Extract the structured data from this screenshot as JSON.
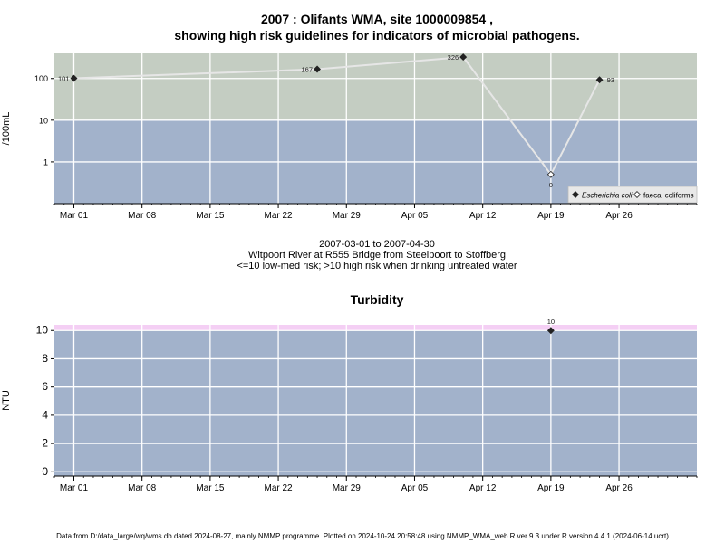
{
  "chart_data": [
    {
      "type": "scatter",
      "title": "2007 : Olifants WMA, site 1000009854 ,",
      "subtitle": "showing high risk guidelines for indicators of microbial pathogens.",
      "ylabel": "/100mL",
      "xlabel_lines": [
        "2007-03-01 to 2007-04-30",
        "Witpoort River at R555 Bridge from Steelpoort to Stoffberg",
        "<=10 low-med risk; >10 high risk when drinking untreated water"
      ],
      "yscale": "log",
      "ylim": [
        0.1,
        400
      ],
      "yticks": [
        1,
        10,
        100
      ],
      "ytick_labels": [
        "1",
        "10",
        "100"
      ],
      "xlim": [
        "2007-02-27",
        "2007-05-04"
      ],
      "xticks": [
        "2007-03-01",
        "2007-03-08",
        "2007-03-15",
        "2007-03-22",
        "2007-03-29",
        "2007-04-05",
        "2007-04-12",
        "2007-04-19",
        "2007-04-26"
      ],
      "xtick_labels": [
        "Mar 01",
        "Mar 08",
        "Mar 15",
        "Mar 22",
        "Mar 29",
        "Apr 05",
        "Apr 12",
        "Apr 19",
        "Apr 26"
      ],
      "bands": [
        {
          "from": 0.1,
          "to": 10,
          "color": "#a2b2cb"
        },
        {
          "from": 10,
          "to": 400,
          "color": "#c4cdc2"
        }
      ],
      "series": [
        {
          "name": "Escherichia coli",
          "marker": "filled-diamond",
          "points": [
            {
              "x": "2007-03-01",
              "y": 101,
              "label": "101"
            },
            {
              "x": "2007-03-26",
              "y": 167,
              "label": "167"
            },
            {
              "x": "2007-04-10",
              "y": 326,
              "label": "326"
            },
            {
              "x": "2007-04-24",
              "y": 93,
              "label": "93"
            }
          ]
        },
        {
          "name": "faecal coliforms",
          "marker": "open-diamond",
          "points": [
            {
              "x": "2007-04-19",
              "y": 0.5,
              "label": "0"
            }
          ]
        }
      ],
      "legend": {
        "position": "bottom-right",
        "entries": [
          "Escherichia coli",
          "faecal coliforms"
        ]
      },
      "grid": true
    },
    {
      "type": "scatter",
      "title": "Turbidity",
      "ylabel": "NTU",
      "ylim": [
        -0.3,
        10.4
      ],
      "yticks": [
        0,
        2,
        4,
        6,
        8,
        10
      ],
      "ytick_labels": [
        "0",
        "2",
        "4",
        "6",
        "8",
        "10"
      ],
      "xlim": [
        "2007-02-27",
        "2007-05-04"
      ],
      "xticks": [
        "2007-03-01",
        "2007-03-08",
        "2007-03-15",
        "2007-03-22",
        "2007-03-29",
        "2007-04-05",
        "2007-04-12",
        "2007-04-19",
        "2007-04-26"
      ],
      "xtick_labels": [
        "Mar 01",
        "Mar 08",
        "Mar 15",
        "Mar 22",
        "Mar 29",
        "Apr 05",
        "Apr 12",
        "Apr 19",
        "Apr 26"
      ],
      "bands": [
        {
          "from": -0.3,
          "to": 10,
          "color": "#a2b2cb"
        },
        {
          "from": 10,
          "to": 10.4,
          "color": "#f4cff4"
        }
      ],
      "series": [
        {
          "marker": "filled-diamond",
          "points": [
            {
              "x": "2007-04-19",
              "y": 10,
              "label": "10"
            }
          ]
        }
      ],
      "grid": true
    }
  ],
  "footer": "Data from D:/data_large/wq/wms.db dated 2024-08-27, mainly NMMP programme. Plotted on 2024-10-24 20:58:48 using NMMP_WMA_web.R ver 9.3 under R version 4.4.1 (2024-06-14 ucrt)"
}
